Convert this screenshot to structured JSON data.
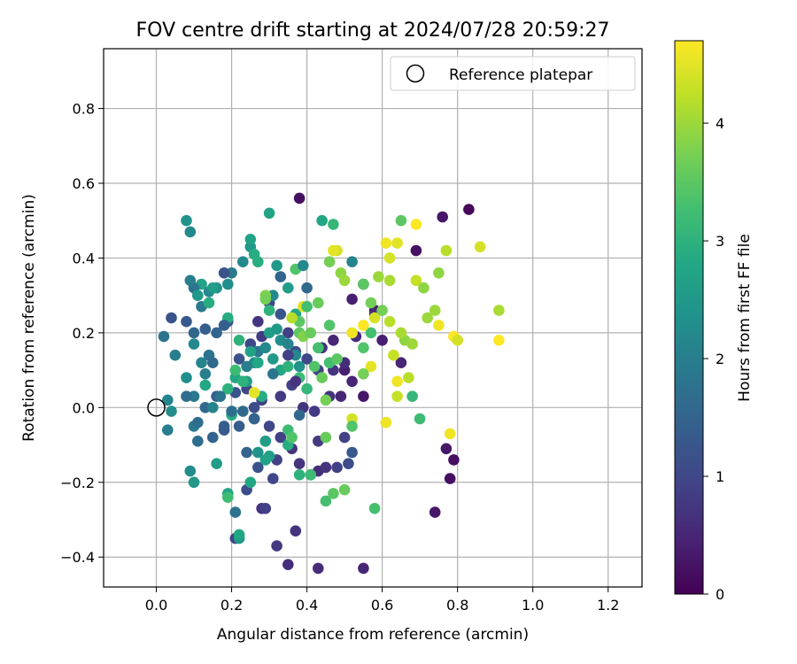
{
  "colors": {
    "grid": "#b0b0b0",
    "axes": "#000000",
    "reference_marker": "#000000"
  },
  "chart_data": {
    "type": "scatter",
    "title": "FOV centre drift starting at 2024/07/28 20:59:27",
    "xlabel": "Angular distance from reference (arcmin)",
    "ylabel": "Rotation from reference (arcmin)",
    "xlim": [
      -0.14,
      1.29
    ],
    "ylim": [
      -0.48,
      0.96
    ],
    "xticks": [
      0.0,
      0.2,
      0.4,
      0.6,
      0.8,
      1.0,
      1.2
    ],
    "xtick_labels": [
      "0.0",
      "0.2",
      "0.4",
      "0.6",
      "0.8",
      "1.0",
      "1.2"
    ],
    "yticks": [
      -0.4,
      -0.2,
      0.0,
      0.2,
      0.4,
      0.6,
      0.8
    ],
    "ytick_labels": [
      "−0.4",
      "−0.2",
      "0.0",
      "0.2",
      "0.4",
      "0.6",
      "0.8"
    ],
    "grid": true,
    "legend": {
      "position": "top-right",
      "entries": [
        {
          "label": "Reference platepar",
          "marker": "open-circle"
        }
      ]
    },
    "reference_point": {
      "x": 0.0,
      "y": 0.0,
      "label": "Reference platepar"
    },
    "colorbar": {
      "label": "Hours from first FF file",
      "range": [
        0,
        4.7
      ],
      "ticks": [
        0,
        1,
        2,
        3,
        4
      ],
      "tick_labels": [
        "0",
        "1",
        "2",
        "3",
        "4"
      ],
      "colormap": "viridis"
    },
    "points": [
      [
        0.83,
        0.53,
        0.1
      ],
      [
        0.38,
        0.56,
        0.2
      ],
      [
        0.76,
        0.51,
        0.3
      ],
      [
        0.69,
        0.42,
        0.2
      ],
      [
        0.55,
        0.33,
        0.3
      ],
      [
        0.52,
        0.29,
        0.4
      ],
      [
        0.58,
        0.26,
        0.3
      ],
      [
        0.65,
        0.12,
        0.5
      ],
      [
        0.53,
        0.19,
        0.6
      ],
      [
        0.47,
        0.18,
        0.5
      ],
      [
        0.44,
        0.16,
        0.7
      ],
      [
        0.5,
        0.1,
        0.4
      ],
      [
        0.52,
        0.07,
        0.5
      ],
      [
        0.55,
        0.03,
        0.3
      ],
      [
        0.58,
        0.25,
        0.6
      ],
      [
        0.6,
        0.18,
        0.4
      ],
      [
        0.79,
        -0.14,
        0.2
      ],
      [
        0.77,
        -0.11,
        0.3
      ],
      [
        0.78,
        -0.19,
        0.2
      ],
      [
        0.74,
        -0.28,
        0.3
      ],
      [
        0.55,
        -0.43,
        0.5
      ],
      [
        0.43,
        -0.43,
        0.6
      ],
      [
        0.35,
        -0.42,
        0.6
      ],
      [
        0.37,
        -0.33,
        0.7
      ],
      [
        0.32,
        -0.37,
        0.8
      ],
      [
        0.28,
        -0.27,
        0.7
      ],
      [
        0.29,
        -0.27,
        0.9
      ],
      [
        0.21,
        -0.35,
        1.0
      ],
      [
        0.24,
        -0.22,
        1.1
      ],
      [
        0.31,
        -0.19,
        1.0
      ],
      [
        0.27,
        -0.16,
        1.2
      ],
      [
        0.32,
        -0.14,
        0.9
      ],
      [
        0.38,
        -0.15,
        0.7
      ],
      [
        0.41,
        -0.18,
        0.8
      ],
      [
        0.43,
        -0.17,
        0.6
      ],
      [
        0.45,
        -0.16,
        0.7
      ],
      [
        0.48,
        -0.16,
        0.9
      ],
      [
        0.51,
        -0.15,
        1.1
      ],
      [
        0.52,
        -0.12,
        1.3
      ],
      [
        0.5,
        -0.08,
        0.9
      ],
      [
        0.43,
        -0.09,
        0.8
      ],
      [
        0.36,
        -0.11,
        0.7
      ],
      [
        0.33,
        -0.08,
        0.9
      ],
      [
        0.3,
        -0.05,
        1.0
      ],
      [
        0.26,
        -0.03,
        1.2
      ],
      [
        0.22,
        -0.05,
        1.4
      ],
      [
        0.18,
        -0.06,
        1.3
      ],
      [
        0.15,
        -0.08,
        1.5
      ],
      [
        0.11,
        -0.09,
        1.7
      ],
      [
        0.1,
        -0.05,
        1.9
      ],
      [
        0.13,
        0.0,
        1.6
      ],
      [
        0.16,
        0.03,
        1.4
      ],
      [
        0.21,
        0.04,
        1.2
      ],
      [
        0.24,
        0.05,
        1.0
      ],
      [
        0.28,
        0.02,
        0.9
      ],
      [
        0.33,
        0.03,
        0.8
      ],
      [
        0.36,
        0.06,
        0.9
      ],
      [
        0.39,
        0.0,
        0.7
      ],
      [
        0.42,
        -0.01,
        0.8
      ],
      [
        0.46,
        0.03,
        0.7
      ],
      [
        0.49,
        0.03,
        0.5
      ],
      [
        0.5,
        0.12,
        0.6
      ],
      [
        0.47,
        0.1,
        0.7
      ],
      [
        0.43,
        0.1,
        0.9
      ],
      [
        0.4,
        0.13,
        1.0
      ],
      [
        0.37,
        0.15,
        1.1
      ],
      [
        0.35,
        0.2,
        0.9
      ],
      [
        0.33,
        0.25,
        1.2
      ],
      [
        0.3,
        0.28,
        1.0
      ],
      [
        0.27,
        0.23,
        0.7
      ],
      [
        0.28,
        0.19,
        0.8
      ],
      [
        0.25,
        0.17,
        1.0
      ],
      [
        0.22,
        0.13,
        1.2
      ],
      [
        0.19,
        0.23,
        1.3
      ],
      [
        0.16,
        0.2,
        1.5
      ],
      [
        0.13,
        0.21,
        1.4
      ],
      [
        0.1,
        0.2,
        1.6
      ],
      [
        0.08,
        0.23,
        1.3
      ],
      [
        0.04,
        0.24,
        1.2
      ],
      [
        0.02,
        0.19,
        1.8
      ],
      [
        0.05,
        0.14,
        2.0
      ],
      [
        0.1,
        0.17,
        2.2
      ],
      [
        0.12,
        0.12,
        2.1
      ],
      [
        0.14,
        0.14,
        1.8
      ],
      [
        0.15,
        0.12,
        1.6
      ],
      [
        0.13,
        0.09,
        2.0
      ],
      [
        0.1,
        0.03,
        1.9
      ],
      [
        0.08,
        0.03,
        1.7
      ],
      [
        0.03,
        0.02,
        2.1
      ],
      [
        0.03,
        -0.06,
        2.0
      ],
      [
        0.09,
        -0.17,
        2.3
      ],
      [
        0.1,
        -0.2,
        2.5
      ],
      [
        0.16,
        -0.15,
        2.6
      ],
      [
        0.19,
        -0.23,
        2.7
      ],
      [
        0.21,
        -0.28,
        1.8
      ],
      [
        0.22,
        -0.35,
        2.5
      ],
      [
        0.25,
        -0.2,
        2.8
      ],
      [
        0.29,
        -0.09,
        2.9
      ],
      [
        0.3,
        -0.13,
        2.6
      ],
      [
        0.27,
        -0.12,
        2.4
      ],
      [
        0.24,
        -0.12,
        1.5
      ],
      [
        0.2,
        -0.02,
        2.9
      ],
      [
        0.23,
        -0.01,
        1.6
      ],
      [
        0.26,
        0.0,
        1.1
      ],
      [
        0.19,
        0.05,
        3.0
      ],
      [
        0.21,
        0.08,
        2.8
      ],
      [
        0.24,
        0.07,
        2.6
      ],
      [
        0.26,
        0.12,
        2.3
      ],
      [
        0.24,
        0.11,
        2.0
      ],
      [
        0.27,
        0.15,
        1.9
      ],
      [
        0.29,
        0.16,
        2.2
      ],
      [
        0.31,
        0.13,
        2.5
      ],
      [
        0.33,
        0.1,
        2.8
      ],
      [
        0.35,
        0.11,
        3.0
      ],
      [
        0.38,
        0.08,
        3.2
      ],
      [
        0.4,
        0.05,
        3.1
      ],
      [
        0.42,
        0.11,
        3.4
      ],
      [
        0.44,
        0.08,
        3.6
      ],
      [
        0.46,
        0.12,
        3.3
      ],
      [
        0.48,
        0.13,
        3.5
      ],
      [
        0.46,
        0.22,
        3.4
      ],
      [
        0.43,
        0.28,
        3.6
      ],
      [
        0.4,
        0.27,
        3.0
      ],
      [
        0.37,
        0.25,
        2.8
      ],
      [
        0.35,
        0.32,
        2.6
      ],
      [
        0.33,
        0.35,
        1.5
      ],
      [
        0.31,
        0.3,
        2.2
      ],
      [
        0.29,
        0.3,
        3.8
      ],
      [
        0.27,
        0.39,
        2.9
      ],
      [
        0.25,
        0.43,
        2.5
      ],
      [
        0.23,
        0.39,
        2.2
      ],
      [
        0.2,
        0.36,
        1.9
      ],
      [
        0.16,
        0.32,
        2.4
      ],
      [
        0.14,
        0.31,
        2.2
      ],
      [
        0.12,
        0.33,
        2.7
      ],
      [
        0.1,
        0.32,
        1.8
      ],
      [
        0.09,
        0.47,
        2.2
      ],
      [
        0.08,
        0.5,
        2.4
      ],
      [
        0.19,
        0.33,
        2.3
      ],
      [
        0.3,
        0.52,
        2.7
      ],
      [
        0.25,
        0.45,
        2.7
      ],
      [
        0.26,
        0.41,
        2.9
      ],
      [
        0.32,
        0.38,
        2.5
      ],
      [
        0.37,
        0.37,
        3.4
      ],
      [
        0.39,
        0.38,
        2.2
      ],
      [
        0.44,
        0.5,
        2.8
      ],
      [
        0.47,
        0.49,
        3.1
      ],
      [
        0.48,
        0.42,
        4.4
      ],
      [
        0.47,
        0.42,
        4.5
      ],
      [
        0.46,
        0.39,
        3.7
      ],
      [
        0.49,
        0.36,
        3.9
      ],
      [
        0.5,
        0.34,
        4.0
      ],
      [
        0.52,
        0.39,
        2.1
      ],
      [
        0.55,
        0.33,
        3.5
      ],
      [
        0.57,
        0.28,
        3.7
      ],
      [
        0.59,
        0.35,
        4.0
      ],
      [
        0.62,
        0.34,
        4.1
      ],
      [
        0.62,
        0.4,
        4.4
      ],
      [
        0.61,
        0.44,
        4.6
      ],
      [
        0.64,
        0.44,
        4.5
      ],
      [
        0.65,
        0.5,
        3.5
      ],
      [
        0.69,
        0.49,
        4.7
      ],
      [
        0.69,
        0.34,
        4.3
      ],
      [
        0.71,
        0.32,
        3.9
      ],
      [
        0.72,
        0.24,
        4.0
      ],
      [
        0.75,
        0.36,
        3.9
      ],
      [
        0.77,
        0.42,
        4.2
      ],
      [
        0.74,
        0.26,
        4.0
      ],
      [
        0.75,
        0.22,
        4.6
      ],
      [
        0.79,
        0.19,
        4.7
      ],
      [
        0.8,
        0.18,
        4.4
      ],
      [
        0.86,
        0.43,
        4.4
      ],
      [
        0.91,
        0.26,
        4.1
      ],
      [
        0.91,
        0.18,
        4.7
      ],
      [
        0.78,
        -0.07,
        4.6
      ],
      [
        0.7,
        -0.03,
        3.2
      ],
      [
        0.68,
        0.03,
        3.1
      ],
      [
        0.67,
        0.08,
        4.2
      ],
      [
        0.64,
        0.07,
        4.6
      ],
      [
        0.64,
        0.03,
        4.3
      ],
      [
        0.61,
        -0.04,
        4.6
      ],
      [
        0.63,
        0.14,
        4.3
      ],
      [
        0.66,
        0.18,
        3.9
      ],
      [
        0.68,
        0.17,
        4.0
      ],
      [
        0.65,
        0.2,
        4.1
      ],
      [
        0.62,
        0.23,
        4.2
      ],
      [
        0.58,
        0.24,
        4.4
      ],
      [
        0.6,
        0.26,
        3.7
      ],
      [
        0.57,
        0.2,
        3.3
      ],
      [
        0.55,
        0.22,
        4.7
      ],
      [
        0.52,
        0.2,
        4.6
      ],
      [
        0.55,
        0.16,
        3.4
      ],
      [
        0.57,
        0.11,
        4.5
      ],
      [
        0.55,
        0.09,
        3.7
      ],
      [
        0.52,
        -0.03,
        4.4
      ],
      [
        0.52,
        -0.05,
        3.4
      ],
      [
        0.45,
        0.02,
        3.7
      ],
      [
        0.45,
        -0.08,
        3.6
      ],
      [
        0.47,
        -0.23,
        3.5
      ],
      [
        0.45,
        -0.25,
        3.3
      ],
      [
        0.5,
        -0.22,
        3.6
      ],
      [
        0.58,
        -0.27,
        3.3
      ],
      [
        0.41,
        -0.18,
        3.2
      ],
      [
        0.38,
        -0.18,
        3.0
      ],
      [
        0.35,
        -0.06,
        3.2
      ],
      [
        0.35,
        -0.1,
        2.9
      ],
      [
        0.29,
        -0.09,
        2.6
      ],
      [
        0.28,
        0.03,
        2.9
      ],
      [
        0.26,
        0.04,
        4.5
      ],
      [
        0.23,
        0.07,
        3.0
      ],
      [
        0.21,
        0.1,
        3.2
      ],
      [
        0.22,
        0.18,
        3.0
      ],
      [
        0.25,
        0.15,
        2.7
      ],
      [
        0.27,
        0.12,
        2.8
      ],
      [
        0.3,
        0.2,
        2.6
      ],
      [
        0.32,
        0.21,
        2.5
      ],
      [
        0.33,
        0.18,
        2.3
      ],
      [
        0.35,
        0.17,
        2.1
      ],
      [
        0.37,
        0.14,
        2.2
      ],
      [
        0.38,
        0.2,
        3.5
      ],
      [
        0.39,
        0.19,
        3.8
      ],
      [
        0.41,
        0.2,
        3.6
      ],
      [
        0.43,
        0.16,
        3.3
      ],
      [
        0.38,
        0.23,
        3.5
      ],
      [
        0.36,
        0.24,
        4.2
      ],
      [
        0.39,
        0.27,
        4.5
      ],
      [
        0.29,
        0.29,
        3.7
      ],
      [
        0.3,
        0.26,
        3.0
      ],
      [
        0.19,
        -0.24,
        3.2
      ],
      [
        0.22,
        -0.34,
        2.8
      ],
      [
        0.36,
        -0.08,
        3.4
      ],
      [
        0.29,
        -0.14,
        2.7
      ],
      [
        0.19,
        0.24,
        2.9
      ],
      [
        0.13,
        0.06,
        2.8
      ],
      [
        0.15,
        0.32,
        2.6
      ],
      [
        0.12,
        0.27,
        1.9
      ],
      [
        0.09,
        0.34,
        2.0
      ],
      [
        0.11,
        0.3,
        2.5
      ],
      [
        0.14,
        0.28,
        2.9
      ],
      [
        0.18,
        0.36,
        1.2
      ],
      [
        0.18,
        0.22,
        1.4
      ],
      [
        0.38,
        0.11,
        2.4
      ],
      [
        0.4,
        0.32,
        1.6
      ],
      [
        0.4,
        0.27,
        3.3
      ],
      [
        0.38,
        -0.02,
        1.6
      ],
      [
        0.35,
        0.14,
        0.9
      ],
      [
        0.37,
        0.07,
        0.7
      ],
      [
        0.31,
        0.09,
        1.8
      ],
      [
        0.26,
        -0.03,
        1.5
      ],
      [
        0.2,
        -0.01,
        1.7
      ],
      [
        0.15,
        0.0,
        2.1
      ],
      [
        0.08,
        0.08,
        2.3
      ],
      [
        0.17,
        0.03,
        1.8
      ],
      [
        0.18,
        -0.05,
        1.4
      ],
      [
        0.11,
        -0.04,
        1.7
      ],
      [
        0.04,
        -0.01,
        2.3
      ]
    ]
  }
}
